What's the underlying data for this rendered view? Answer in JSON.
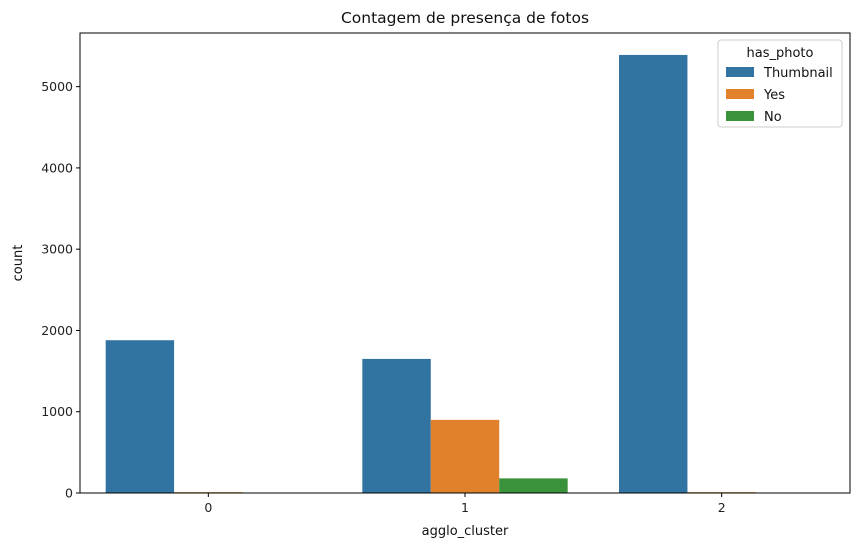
{
  "chart_data": {
    "type": "bar",
    "title": "Contagem de presença de fotos",
    "xlabel": "agglo_cluster",
    "ylabel": "count",
    "categories": [
      "0",
      "1",
      "2"
    ],
    "series": [
      {
        "name": "Thumbnail",
        "color": "#3274a1",
        "values": [
          1880,
          1650,
          5390
        ]
      },
      {
        "name": "Yes",
        "color": "#e1812c",
        "values": [
          10,
          900,
          10
        ]
      },
      {
        "name": "No",
        "color": "#3a923a",
        "values": [
          5,
          180,
          5
        ]
      }
    ],
    "legend_title": "has_photo",
    "legend_position": "top-right",
    "ylim": [
      0,
      5660
    ],
    "yticks": [
      0,
      1000,
      2000,
      3000,
      4000,
      5000
    ],
    "grid": false
  }
}
